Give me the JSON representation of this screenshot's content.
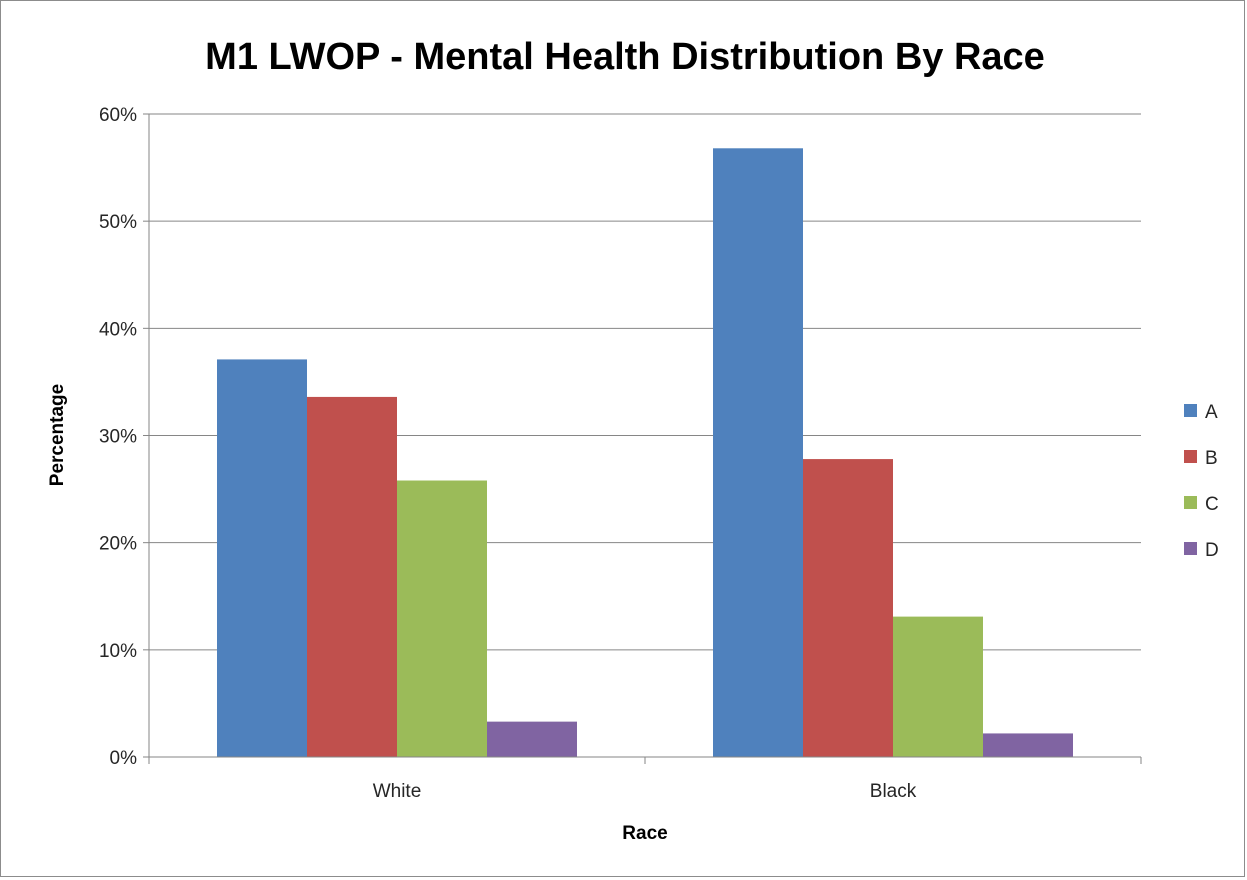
{
  "chart_data": {
    "type": "bar",
    "title": "M1 LWOP - Mental Health Distribution By Race",
    "xlabel": "Race",
    "ylabel": "Percentage",
    "categories": [
      "White",
      "Black"
    ],
    "series": [
      {
        "name": "A",
        "values": [
          37.1,
          56.8
        ],
        "color": "#4f81bd"
      },
      {
        "name": "B",
        "values": [
          33.6,
          27.8
        ],
        "color": "#c0504d"
      },
      {
        "name": "C",
        "values": [
          25.8,
          13.1
        ],
        "color": "#9bbb59"
      },
      {
        "name": "D",
        "values": [
          3.3,
          2.2
        ],
        "color": "#8064a2"
      }
    ],
    "ylim": [
      0,
      60
    ],
    "yticks": [
      "0%",
      "10%",
      "20%",
      "30%",
      "40%",
      "50%",
      "60%"
    ],
    "grid": true,
    "legend": "right"
  }
}
